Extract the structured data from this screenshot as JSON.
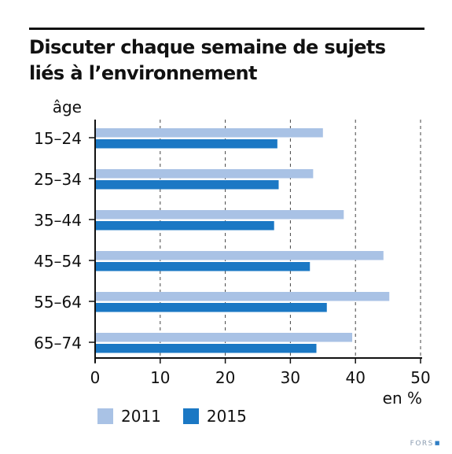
{
  "chart_data": {
    "type": "bar",
    "orientation": "horizontal",
    "title_lines": [
      "Discuter chaque semaine de sujets",
      "liés à l’environnement"
    ],
    "category_axis_label": "âge",
    "value_axis_label": "en %",
    "categories": [
      "15–24",
      "25–34",
      "35–44",
      "45–54",
      "55–64",
      "65–74"
    ],
    "series": [
      {
        "name": "2011",
        "color": "#a9c2e5",
        "values": [
          35,
          33.5,
          38.2,
          44.3,
          45.2,
          39.5
        ]
      },
      {
        "name": "2015",
        "color": "#1b78c4",
        "values": [
          28,
          28.2,
          27.5,
          33,
          35.6,
          34
        ]
      }
    ],
    "xlim": [
      0,
      50
    ],
    "xticks": [
      0,
      10,
      20,
      30,
      40,
      50
    ],
    "grid": "vertical dashed",
    "legend_position": "bottom-left"
  },
  "footer": {
    "logo_text": "FORS",
    "logo_mark": "■"
  }
}
